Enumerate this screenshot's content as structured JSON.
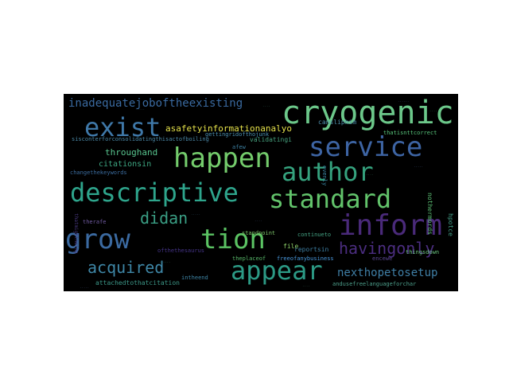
{
  "words": [
    {
      "text": "cryogenic",
      "color": "#6cc88a"
    },
    {
      "text": "exist",
      "color": "#3f78a8"
    },
    {
      "text": "service",
      "color": "#3d64a3"
    },
    {
      "text": "happen",
      "color": "#74cc6c"
    },
    {
      "text": "author",
      "color": "#35a27e"
    },
    {
      "text": "descriptive",
      "color": "#2ea58c"
    },
    {
      "text": "standard",
      "color": "#62c36b"
    },
    {
      "text": "inform",
      "color": "#4a2a7a"
    },
    {
      "text": "grow",
      "color": "#3b6aa1"
    },
    {
      "text": "tion",
      "color": "#5bc363"
    },
    {
      "text": "didan",
      "color": "#3a9e84"
    },
    {
      "text": "havingonly",
      "color": "#4b2d80"
    },
    {
      "text": "appear",
      "color": "#2c9a85"
    },
    {
      "text": "acquired",
      "color": "#3e86a6"
    },
    {
      "text": "inadequatejoboftheexisting",
      "color": "#3a6aa0"
    },
    {
      "text": "nexthopetosetup",
      "color": "#3f7fa6"
    },
    {
      "text": "asafetyinformationanalyo",
      "color": "#e6e24a"
    },
    {
      "text": "sisconterforconsolidatingthisactofboiling",
      "color": "#4c8aa8"
    },
    {
      "text": "throughand",
      "color": "#58c48e"
    },
    {
      "text": "citationsin",
      "color": "#3ea883"
    },
    {
      "text": "changethekeywords",
      "color": "#3b6c9e"
    },
    {
      "text": "therafe",
      "color": "#6f5aa0"
    },
    {
      "text": "standpoint",
      "color": "#7cc36a"
    },
    {
      "text": "file",
      "color": "#8fd26a"
    },
    {
      "text": "reportsin",
      "color": "#3e7fa3"
    },
    {
      "text": "continueto",
      "color": "#44a283"
    },
    {
      "text": "thingsdown",
      "color": "#6cc680"
    },
    {
      "text": "encewe",
      "color": "#5b4892"
    },
    {
      "text": "andusefreelanguageforchar",
      "color": "#4c9e8a"
    },
    {
      "text": "attachedtothatcitation",
      "color": "#3c9787"
    },
    {
      "text": "intheend",
      "color": "#3f86a6"
    },
    {
      "text": "theplaceof",
      "color": "#58b86a"
    },
    {
      "text": "freeofanybusiness",
      "color": "#4a9be0"
    },
    {
      "text": "ofthethesaurus",
      "color": "#46358a"
    },
    {
      "text": "validatingi",
      "color": "#47a37f"
    },
    {
      "text": "afew",
      "color": "#3d7fa0"
    },
    {
      "text": "thatisnttcorrect",
      "color": "#57c37a"
    },
    {
      "text": "cansliphim",
      "color": "#4f90ad"
    },
    {
      "text": "gettingridofthojunk",
      "color": "#4a8fb0"
    },
    {
      "text": "nothermords",
      "color": "#5cbf74"
    },
    {
      "text": "hpotce",
      "color": "#44a08a"
    },
    {
      "text": "thatmightnoing",
      "color": "#4a3a82"
    },
    {
      "text": "evenly",
      "color": "#3b87a3"
    }
  ]
}
